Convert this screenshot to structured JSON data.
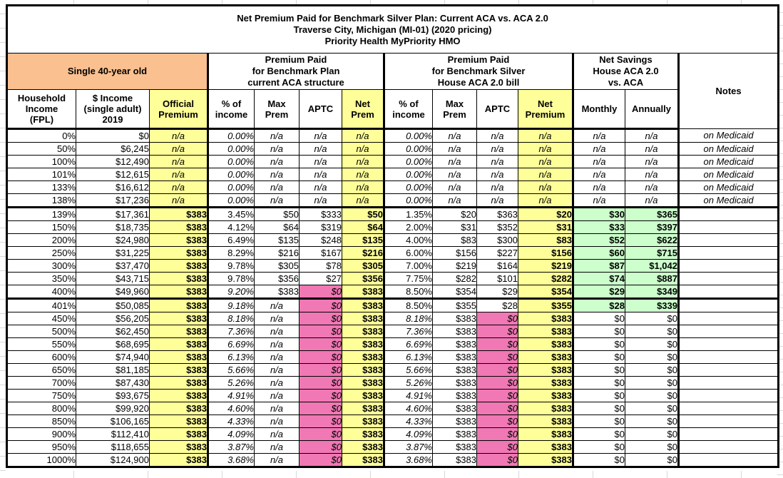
{
  "title": {
    "line1": "Net Premium Paid for Benchmark Silver Plan: Current ACA vs. ACA 2.0",
    "line2": "Traverse City, Michigan (MI-01) (2020 pricing)",
    "line3": "Priority Health MyPriority HMO"
  },
  "groups": {
    "demographic": "Single 40-year old",
    "aca_current": "Premium Paid\nfor Benchmark Plan\ncurrent ACA structure",
    "aca2": "Premium Paid\nfor Benchmark Silver\nHouse ACA 2.0 bill",
    "savings": "Net Savings\nHouse ACA 2.0\nvs. ACA",
    "notes": "Notes"
  },
  "headers": [
    "Household\nIncome\n(FPL)",
    "$ Income\n(single adult)\n2019",
    "Official\nPremium",
    "% of\nincome",
    "Max\nPrem",
    "APTC",
    "Net\nPrem",
    "% of\nincome",
    "Max\nPrem",
    "APTC",
    "Net\nPremium",
    "Monthly",
    "Annually"
  ],
  "colors": {
    "orange": "#FAC090",
    "yellow": "#FFFF99",
    "pink": "#F078B4",
    "green": "#CCFFCC",
    "border": "#000000"
  },
  "rows": [
    {
      "c": [
        "0%",
        "$0",
        "n/a",
        "0.00%",
        "n/a",
        "n/a",
        "n/a",
        "0.00%",
        "n/a",
        "n/a",
        "n/a",
        "n/a",
        "n/a",
        "on Medicaid"
      ],
      "f": "i1 i2"
    },
    {
      "c": [
        "50%",
        "$6,245",
        "n/a",
        "0.00%",
        "n/a",
        "n/a",
        "n/a",
        "0.00%",
        "n/a",
        "n/a",
        "n/a",
        "n/a",
        "n/a",
        "on Medicaid"
      ],
      "f": "i1 i2"
    },
    {
      "c": [
        "100%",
        "$12,490",
        "n/a",
        "0.00%",
        "n/a",
        "n/a",
        "n/a",
        "0.00%",
        "n/a",
        "n/a",
        "n/a",
        "n/a",
        "n/a",
        "on Medicaid"
      ],
      "f": "i1 i2"
    },
    {
      "c": [
        "101%",
        "$12,615",
        "n/a",
        "0.00%",
        "n/a",
        "n/a",
        "n/a",
        "0.00%",
        "n/a",
        "n/a",
        "n/a",
        "n/a",
        "n/a",
        "on Medicaid"
      ],
      "f": "i1 i2"
    },
    {
      "c": [
        "133%",
        "$16,612",
        "n/a",
        "0.00%",
        "n/a",
        "n/a",
        "n/a",
        "0.00%",
        "n/a",
        "n/a",
        "n/a",
        "n/a",
        "n/a",
        "on Medicaid"
      ],
      "f": "i1 i2"
    },
    {
      "c": [
        "138%",
        "$17,236",
        "n/a",
        "0.00%",
        "n/a",
        "n/a",
        "n/a",
        "0.00%",
        "n/a",
        "n/a",
        "n/a",
        "n/a",
        "n/a",
        "on Medicaid"
      ],
      "f": "i1 i2 tb"
    },
    {
      "c": [
        "139%",
        "$17,361",
        "$383",
        "3.45%",
        "$50",
        "$333",
        "$50",
        "1.35%",
        "$20",
        "$363",
        "$20",
        "$30",
        "$365",
        ""
      ],
      "f": "g"
    },
    {
      "c": [
        "150%",
        "$18,735",
        "$383",
        "4.12%",
        "$64",
        "$319",
        "$64",
        "2.00%",
        "$31",
        "$352",
        "$31",
        "$33",
        "$397",
        ""
      ],
      "f": "g"
    },
    {
      "c": [
        "200%",
        "$24,980",
        "$383",
        "6.49%",
        "$135",
        "$248",
        "$135",
        "4.00%",
        "$83",
        "$300",
        "$83",
        "$52",
        "$622",
        ""
      ],
      "f": "g"
    },
    {
      "c": [
        "250%",
        "$31,225",
        "$383",
        "8.29%",
        "$216",
        "$167",
        "$216",
        "6.00%",
        "$156",
        "$227",
        "$156",
        "$60",
        "$715",
        ""
      ],
      "f": "g"
    },
    {
      "c": [
        "300%",
        "$37,470",
        "$383",
        "9.78%",
        "$305",
        "$78",
        "$305",
        "7.00%",
        "$219",
        "$164",
        "$219",
        "$87",
        "$1,042",
        ""
      ],
      "f": "g"
    },
    {
      "c": [
        "350%",
        "$43,715",
        "$383",
        "9.78%",
        "$356",
        "$27",
        "$356",
        "7.75%",
        "$282",
        "$101",
        "$282",
        "$74",
        "$887",
        ""
      ],
      "f": "g"
    },
    {
      "c": [
        "400%",
        "$49,960",
        "$383",
        "9.20%",
        "$383",
        "$0",
        "$383",
        "8.50%",
        "$354",
        "$29",
        "$354",
        "$29",
        "$349",
        ""
      ],
      "f": "i1 p1 g tb"
    },
    {
      "c": [
        "401%",
        "$50,085",
        "$383",
        "9.18%",
        "n/a",
        "$0",
        "$383",
        "8.50%",
        "$355",
        "$28",
        "$355",
        "$28",
        "$339",
        ""
      ],
      "f": "i1 p1 g tbg"
    },
    {
      "c": [
        "450%",
        "$56,205",
        "$383",
        "8.18%",
        "n/a",
        "$0",
        "$383",
        "8.18%",
        "$383",
        "$0",
        "$383",
        "$0",
        "$0",
        ""
      ],
      "f": "i1 i2 p1 p2"
    },
    {
      "c": [
        "500%",
        "$62,450",
        "$383",
        "7.36%",
        "n/a",
        "$0",
        "$383",
        "7.36%",
        "$383",
        "$0",
        "$383",
        "$0",
        "$0",
        ""
      ],
      "f": "i1 i2 p1 p2"
    },
    {
      "c": [
        "550%",
        "$68,695",
        "$383",
        "6.69%",
        "n/a",
        "$0",
        "$383",
        "6.69%",
        "$383",
        "$0",
        "$383",
        "$0",
        "$0",
        ""
      ],
      "f": "i1 i2 p1 p2"
    },
    {
      "c": [
        "600%",
        "$74,940",
        "$383",
        "6.13%",
        "n/a",
        "$0",
        "$383",
        "6.13%",
        "$383",
        "$0",
        "$383",
        "$0",
        "$0",
        ""
      ],
      "f": "i1 i2 p1 p2"
    },
    {
      "c": [
        "650%",
        "$81,185",
        "$383",
        "5.66%",
        "n/a",
        "$0",
        "$383",
        "5.66%",
        "$383",
        "$0",
        "$383",
        "$0",
        "$0",
        ""
      ],
      "f": "i1 i2 p1 p2"
    },
    {
      "c": [
        "700%",
        "$87,430",
        "$383",
        "5.26%",
        "n/a",
        "$0",
        "$383",
        "5.26%",
        "$383",
        "$0",
        "$383",
        "$0",
        "$0",
        ""
      ],
      "f": "i1 i2 p1 p2"
    },
    {
      "c": [
        "750%",
        "$93,675",
        "$383",
        "4.91%",
        "n/a",
        "$0",
        "$383",
        "4.91%",
        "$383",
        "$0",
        "$383",
        "$0",
        "$0",
        ""
      ],
      "f": "i1 i2 p1 p2"
    },
    {
      "c": [
        "800%",
        "$99,920",
        "$383",
        "4.60%",
        "n/a",
        "$0",
        "$383",
        "4.60%",
        "$383",
        "$0",
        "$383",
        "$0",
        "$0",
        ""
      ],
      "f": "i1 i2 p1 p2"
    },
    {
      "c": [
        "850%",
        "$106,165",
        "$383",
        "4.33%",
        "n/a",
        "$0",
        "$383",
        "4.33%",
        "$383",
        "$0",
        "$383",
        "$0",
        "$0",
        ""
      ],
      "f": "i1 i2 p1 p2"
    },
    {
      "c": [
        "900%",
        "$112,410",
        "$383",
        "4.09%",
        "n/a",
        "$0",
        "$383",
        "4.09%",
        "$383",
        "$0",
        "$383",
        "$0",
        "$0",
        ""
      ],
      "f": "i1 i2 p1 p2"
    },
    {
      "c": [
        "950%",
        "$118,655",
        "$383",
        "3.87%",
        "n/a",
        "$0",
        "$383",
        "3.87%",
        "$383",
        "$0",
        "$383",
        "$0",
        "$0",
        ""
      ],
      "f": "i1 i2 p1 p2"
    },
    {
      "c": [
        "1000%",
        "$124,900",
        "$383",
        "3.68%",
        "n/a",
        "$0",
        "$383",
        "3.68%",
        "$383",
        "$0",
        "$383",
        "$0",
        "$0",
        ""
      ],
      "f": "i1 i2 p1 p2"
    }
  ]
}
